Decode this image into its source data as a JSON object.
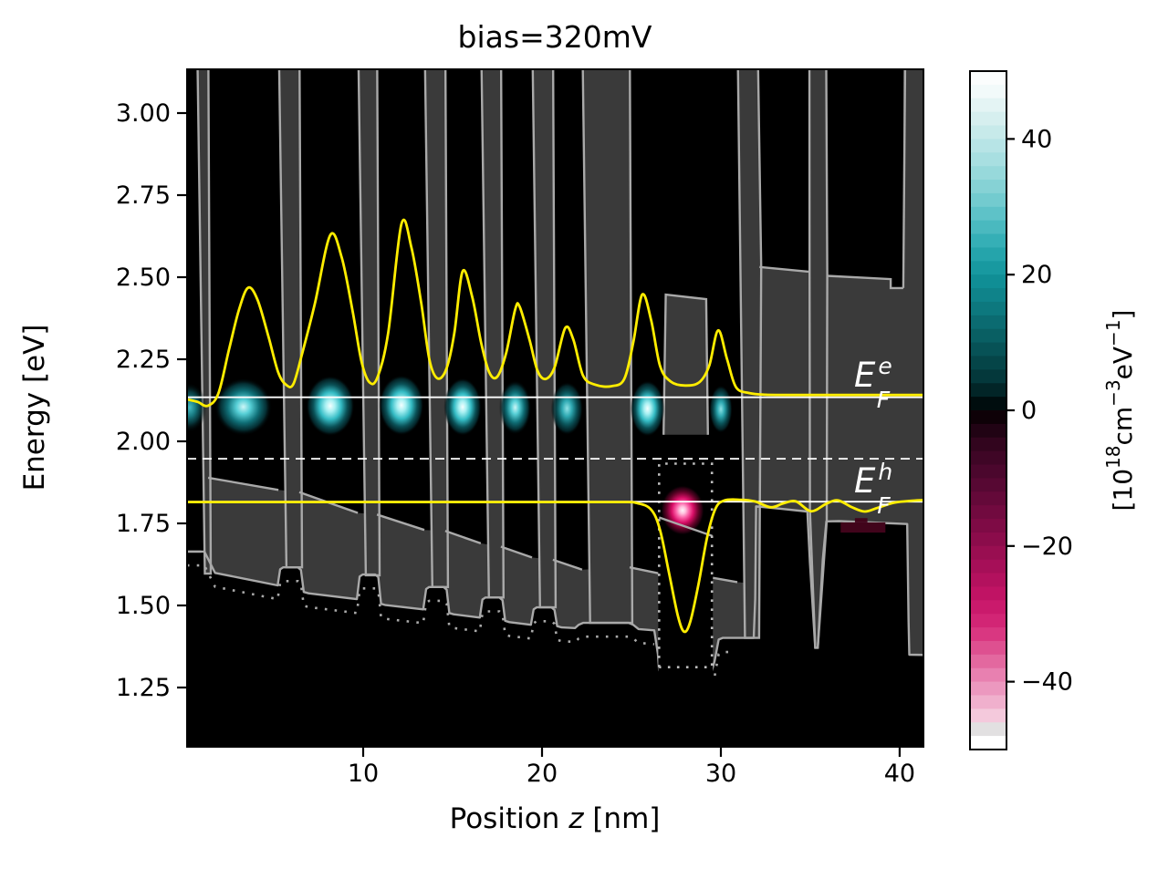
{
  "title": "bias=320mV",
  "axes": {
    "xlabel": {
      "pre": "Position ",
      "var": "z",
      "post": " [nm]"
    },
    "ylabel": "Energy [eV]",
    "xticks": [
      {
        "v": 10,
        "label": "10"
      },
      {
        "v": 20,
        "label": "20"
      },
      {
        "v": 30,
        "label": "30"
      },
      {
        "v": 40,
        "label": "40"
      }
    ],
    "yticks": [
      {
        "v": 3.0,
        "label": "3.00"
      },
      {
        "v": 2.75,
        "label": "2.75"
      },
      {
        "v": 2.5,
        "label": "2.50"
      },
      {
        "v": 2.25,
        "label": "2.25"
      },
      {
        "v": 2.0,
        "label": "2.00"
      },
      {
        "v": 1.75,
        "label": "1.75"
      },
      {
        "v": 1.5,
        "label": "1.50"
      },
      {
        "v": 1.25,
        "label": "1.25"
      }
    ],
    "xlim": [
      0.153,
      41.33
    ],
    "ylim": [
      1.0694,
      3.1333
    ]
  },
  "labels": {
    "efe": {
      "base": "E",
      "sup": "e",
      "sub": "F"
    },
    "efh": {
      "base": "E",
      "sup": "h",
      "sub": "F"
    }
  },
  "colorbar": {
    "vmin": -50,
    "vmax": 50,
    "bands": 50,
    "ticks": [
      {
        "v": 40,
        "label": "40"
      },
      {
        "v": 20,
        "label": "20"
      },
      {
        "v": 0,
        "label": "0"
      },
      {
        "v": -20,
        "label": "−20"
      },
      {
        "v": -40,
        "label": "−40"
      }
    ],
    "unit_parts": [
      {
        "t": "[10",
        "sup": false
      },
      {
        "t": "18",
        "sup": true
      },
      {
        "t": "cm",
        "sup": false
      },
      {
        "t": "−3",
        "sup": true
      },
      {
        "t": "eV",
        "sup": false
      },
      {
        "t": "−1",
        "sup": true
      },
      {
        "t": "]",
        "sup": false
      }
    ],
    "anchors": [
      [
        50,
        "#ffffff"
      ],
      [
        47,
        "#f2fafa"
      ],
      [
        44,
        "#ddf1f1"
      ],
      [
        40,
        "#bfe7e8"
      ],
      [
        36,
        "#a0dcde"
      ],
      [
        32,
        "#7dcfd2"
      ],
      [
        28,
        "#54bec4"
      ],
      [
        24,
        "#2baab1"
      ],
      [
        20,
        "#11939a"
      ],
      [
        16,
        "#0e7e84"
      ],
      [
        12,
        "#0a656a"
      ],
      [
        8,
        "#064b4f"
      ],
      [
        4,
        "#033134"
      ],
      [
        1,
        "#000d0e"
      ],
      [
        0,
        "#000000"
      ],
      [
        -1,
        "#0e0107"
      ],
      [
        -4,
        "#2b041a"
      ],
      [
        -8,
        "#45062a"
      ],
      [
        -12,
        "#5d0836"
      ],
      [
        -16,
        "#770a42"
      ],
      [
        -20,
        "#920d4e"
      ],
      [
        -24,
        "#ad105b"
      ],
      [
        -28,
        "#c61467"
      ],
      [
        -32,
        "#d62a79"
      ],
      [
        -36,
        "#e05c97"
      ],
      [
        -40,
        "#ea8cb8"
      ],
      [
        -44,
        "#f2bcd4"
      ],
      [
        -46,
        "#f6d5e3"
      ],
      [
        -46.05,
        "#e2e0e1"
      ],
      [
        -48,
        "#e2e0e1"
      ],
      [
        -48.05,
        "#ffffff"
      ],
      [
        -50,
        "#ffffff"
      ]
    ]
  },
  "colors": {
    "plot_bg": "#000000",
    "gap_fill": "#3a3a3a",
    "band_line": "#a9a9a9",
    "curve_yellow": "#ffed00",
    "fermi_white": "#ffffff",
    "red_bar": "#41041b"
  },
  "chart_data": {
    "type": "heatmap",
    "description": "Energy-resolved carrier density n(z,E) in 10^18 cm^-3 eV^-1 over a multi-quantum-well LED band diagram at bias=320mV; cyan=electrons (positive), magenta=holes (negative), with conduction/valence band edges (gray), quasi-Fermi levels (white) and carrier density curves (yellow)",
    "fermi": {
      "efe": 2.134,
      "efh": 1.816,
      "dashed": 1.947
    },
    "band_upper_envelope": [
      [
        0.15,
        1.664
      ],
      [
        1.12,
        1.664
      ],
      [
        1.12,
        1.889
      ],
      [
        5.26,
        1.852
      ],
      [
        6.43,
        1.845
      ],
      [
        9.7,
        1.782
      ],
      [
        10.77,
        1.777
      ],
      [
        13.42,
        1.73
      ],
      [
        14.59,
        1.727
      ],
      [
        16.58,
        1.689
      ],
      [
        17.7,
        1.679
      ],
      [
        19.44,
        1.646
      ],
      [
        20.61,
        1.639
      ],
      [
        22.24,
        1.609
      ],
      [
        24.9,
        1.616
      ],
      [
        26.5,
        1.598
      ],
      [
        29.55,
        1.584
      ],
      [
        30.92,
        1.571
      ],
      [
        32.04,
        1.565
      ],
      [
        32.04,
        2.531
      ],
      [
        34.9,
        2.517
      ],
      [
        35.93,
        2.504
      ],
      [
        39.5,
        2.494
      ],
      [
        39.5,
        2.467
      ],
      [
        40.2,
        2.467
      ],
      [
        40.2,
        3.3
      ],
      [
        41.5,
        3.3
      ]
    ],
    "band_upper_segments": [
      [
        [
          0.15,
          1.664
        ],
        [
          0.95,
          1.664
        ]
      ],
      [
        [
          1.33,
          1.889
        ],
        [
          5.26,
          1.852
        ]
      ],
      [
        [
          6.43,
          1.845
        ],
        [
          9.7,
          1.782
        ]
      ],
      [
        [
          10.77,
          1.777
        ],
        [
          13.42,
          1.73
        ]
      ],
      [
        [
          14.59,
          1.727
        ],
        [
          16.58,
          1.689
        ]
      ],
      [
        [
          17.7,
          1.679
        ],
        [
          19.44,
          1.646
        ]
      ],
      [
        [
          20.61,
          1.639
        ],
        [
          22.24,
          1.609
        ]
      ],
      [
        [
          24.9,
          1.616
        ],
        [
          26.5,
          1.598
        ]
      ],
      [
        [
          29.55,
          1.584
        ],
        [
          30.92,
          1.571
        ]
      ],
      [
        [
          32.16,
          2.531
        ],
        [
          34.9,
          2.517
        ]
      ],
      [
        [
          35.93,
          2.504
        ],
        [
          39.5,
          2.494
        ],
        [
          39.5,
          2.467
        ],
        [
          40.2,
          2.467
        ]
      ],
      [
        [
          40.2,
          2.467
        ],
        [
          40.33,
          3.3
        ]
      ]
    ],
    "ev_points": [
      [
        0.15,
        1.664
      ],
      [
        1.12,
        1.664
      ],
      [
        1.72,
        1.599
      ],
      [
        5.22,
        1.561
      ],
      [
        5.36,
        1.61
      ],
      [
        5.52,
        1.616
      ],
      [
        6.35,
        1.616
      ],
      [
        6.52,
        1.608
      ],
      [
        6.68,
        1.541
      ],
      [
        6.95,
        1.537
      ],
      [
        9.65,
        1.519
      ],
      [
        9.8,
        1.588
      ],
      [
        9.97,
        1.594
      ],
      [
        10.68,
        1.594
      ],
      [
        10.85,
        1.586
      ],
      [
        11.0,
        1.505
      ],
      [
        11.25,
        1.501
      ],
      [
        13.36,
        1.488
      ],
      [
        13.52,
        1.55
      ],
      [
        13.69,
        1.556
      ],
      [
        14.5,
        1.556
      ],
      [
        14.67,
        1.548
      ],
      [
        14.82,
        1.477
      ],
      [
        15.06,
        1.473
      ],
      [
        16.52,
        1.463
      ],
      [
        16.67,
        1.518
      ],
      [
        16.84,
        1.524
      ],
      [
        17.62,
        1.524
      ],
      [
        17.79,
        1.516
      ],
      [
        17.94,
        1.453
      ],
      [
        18.18,
        1.449
      ],
      [
        19.38,
        1.441
      ],
      [
        19.53,
        1.488
      ],
      [
        19.7,
        1.494
      ],
      [
        20.53,
        1.494
      ],
      [
        20.7,
        1.486
      ],
      [
        20.85,
        1.437
      ],
      [
        21.1,
        1.433
      ],
      [
        21.85,
        1.431
      ],
      [
        22.05,
        1.441
      ],
      [
        22.3,
        1.447
      ],
      [
        24.85,
        1.447
      ],
      [
        25.1,
        1.441
      ],
      [
        25.4,
        1.428
      ],
      [
        26.28,
        1.424
      ],
      [
        26.48,
        1.352
      ],
      [
        26.55,
        1.302
      ],
      [
        29.5,
        1.302
      ],
      [
        29.65,
        1.33
      ],
      [
        29.88,
        1.396
      ],
      [
        30.1,
        1.401
      ],
      [
        31.84,
        1.401
      ],
      [
        31.92,
        1.52
      ],
      [
        31.97,
        1.802
      ],
      [
        33.4,
        1.794
      ],
      [
        34.84,
        1.786
      ],
      [
        34.98,
        1.63
      ],
      [
        35.28,
        1.371
      ],
      [
        35.42,
        1.371
      ],
      [
        35.7,
        1.64
      ],
      [
        35.9,
        1.756
      ],
      [
        36.6,
        1.757
      ],
      [
        40.42,
        1.748
      ],
      [
        40.5,
        1.45
      ],
      [
        40.54,
        1.35
      ],
      [
        41.5,
        1.349
      ]
    ],
    "dotted_offset": 0.042,
    "dotted_zmax": 26.4,
    "dotted_extra": [
      [
        29.66,
        1.286
      ],
      [
        29.88,
        1.352
      ],
      [
        30.12,
        1.358
      ],
      [
        30.62,
        1.358
      ]
    ],
    "barriers": [
      {
        "z1": 0.7,
        "z2": 1.33,
        "eb": 1.597
      },
      {
        "z1": 5.26,
        "z2": 6.43,
        "eb": 1.616
      },
      {
        "z1": 9.7,
        "z2": 10.77,
        "eb": 1.592
      },
      {
        "z1": 13.42,
        "z2": 14.59,
        "eb": 1.556
      },
      {
        "z1": 16.58,
        "z2": 17.7,
        "eb": 1.524
      },
      {
        "z1": 19.44,
        "z2": 20.61,
        "eb": 1.494
      },
      {
        "z1": 22.24,
        "z2": 24.9,
        "eb": 1.447
      }
    ],
    "barrier_b8": [
      [
        30.92,
        3.3
      ],
      [
        32.04,
        3.3
      ],
      [
        32.26,
        2.53
      ],
      [
        32.18,
        1.8
      ],
      [
        32.14,
        1.401
      ],
      [
        31.35,
        1.401
      ]
    ],
    "barrier_ebl": [
      [
        34.95,
        3.3
      ],
      [
        35.88,
        3.3
      ],
      [
        35.95,
        2.51
      ],
      [
        35.92,
        1.756
      ],
      [
        35.42,
        1.371
      ],
      [
        35.28,
        1.371
      ],
      [
        34.98,
        1.79
      ],
      [
        34.96,
        2.51
      ]
    ],
    "hole_well": {
      "box": {
        "z1": 26.5,
        "z2": 29.55,
        "etop": 2.5,
        "ebot": 1.296
      },
      "cap": [
        [
          26.8,
          2.02
        ],
        [
          26.92,
          2.447
        ],
        [
          29.18,
          2.433
        ],
        [
          29.28,
          2.02
        ]
      ],
      "slant": [
        [
          26.55,
          1.768
        ],
        [
          29.52,
          1.712
        ]
      ],
      "dotted": {
        "zl": 26.55,
        "zr": 29.5,
        "etop": 1.932,
        "ebot": 1.312
      }
    },
    "electron_blobs": [
      {
        "z": 0.3,
        "e": 2.103,
        "rz": 0.95,
        "re": 0.075,
        "tier": "dim"
      },
      {
        "z": 3.3,
        "e": 2.105,
        "rz": 1.6,
        "re": 0.088,
        "tier": "bright"
      },
      {
        "z": 8.16,
        "e": 2.108,
        "rz": 1.35,
        "re": 0.092,
        "tier": "white"
      },
      {
        "z": 12.14,
        "e": 2.11,
        "rz": 1.25,
        "re": 0.092,
        "tier": "white"
      },
      {
        "z": 15.56,
        "e": 2.105,
        "rz": 1.05,
        "re": 0.088,
        "tier": "white"
      },
      {
        "z": 18.5,
        "e": 2.103,
        "rz": 0.9,
        "re": 0.083,
        "tier": "bright"
      },
      {
        "z": 21.4,
        "e": 2.1,
        "rz": 0.9,
        "re": 0.081,
        "tier": "med"
      },
      {
        "z": 25.9,
        "e": 2.1,
        "rz": 0.95,
        "re": 0.085,
        "tier": "white"
      },
      {
        "z": 30.0,
        "e": 2.098,
        "rz": 0.65,
        "re": 0.073,
        "tier": "med"
      }
    ],
    "hole_blob": {
      "z": 27.86,
      "e": 1.79,
      "rz": 1.22,
      "re": 0.076
    },
    "red_bars": [
      {
        "z1": 36.7,
        "z2": 39.2,
        "e1": 1.722,
        "e2": 1.753
      },
      {
        "z1": 37.5,
        "z2": 38.2,
        "e1": 1.753,
        "e2": 1.766
      }
    ],
    "yellow_upper": [
      [
        0.15,
        2.128
      ],
      [
        0.75,
        2.12
      ],
      [
        1.3,
        2.108
      ],
      [
        1.9,
        2.145
      ],
      [
        2.5,
        2.28
      ],
      [
        3.05,
        2.4
      ],
      [
        3.57,
        2.468
      ],
      [
        4.1,
        2.43
      ],
      [
        4.7,
        2.32
      ],
      [
        5.25,
        2.21
      ],
      [
        5.7,
        2.172
      ],
      [
        6.1,
        2.175
      ],
      [
        6.6,
        2.27
      ],
      [
        7.3,
        2.42
      ],
      [
        8.16,
        2.628
      ],
      [
        8.8,
        2.56
      ],
      [
        9.4,
        2.4
      ],
      [
        9.9,
        2.245
      ],
      [
        10.35,
        2.18
      ],
      [
        10.8,
        2.195
      ],
      [
        11.4,
        2.33
      ],
      [
        12.14,
        2.662
      ],
      [
        12.7,
        2.59
      ],
      [
        13.25,
        2.42
      ],
      [
        13.7,
        2.25
      ],
      [
        14.15,
        2.192
      ],
      [
        14.65,
        2.22
      ],
      [
        15.1,
        2.33
      ],
      [
        15.56,
        2.518
      ],
      [
        16.1,
        2.44
      ],
      [
        16.6,
        2.3
      ],
      [
        17.05,
        2.21
      ],
      [
        17.5,
        2.197
      ],
      [
        18.0,
        2.27
      ],
      [
        18.5,
        2.402
      ],
      [
        18.75,
        2.41
      ],
      [
        19.3,
        2.31
      ],
      [
        19.75,
        2.215
      ],
      [
        20.2,
        2.19
      ],
      [
        20.7,
        2.225
      ],
      [
        21.3,
        2.345
      ],
      [
        21.75,
        2.31
      ],
      [
        22.3,
        2.2
      ],
      [
        23.0,
        2.172
      ],
      [
        23.9,
        2.168
      ],
      [
        24.6,
        2.19
      ],
      [
        25.1,
        2.3
      ],
      [
        25.6,
        2.447
      ],
      [
        26.1,
        2.37
      ],
      [
        26.6,
        2.23
      ],
      [
        27.2,
        2.182
      ],
      [
        28.0,
        2.17
      ],
      [
        28.8,
        2.18
      ],
      [
        29.35,
        2.23
      ],
      [
        29.85,
        2.338
      ],
      [
        30.35,
        2.25
      ],
      [
        30.85,
        2.165
      ],
      [
        31.6,
        2.147
      ],
      [
        32.5,
        2.142
      ],
      [
        34.0,
        2.141
      ],
      [
        37.0,
        2.141
      ],
      [
        41.5,
        2.141
      ]
    ],
    "yellow_lower": [
      [
        0.15,
        1.815
      ],
      [
        5.0,
        1.815
      ],
      [
        12.0,
        1.815
      ],
      [
        20.0,
        1.815
      ],
      [
        24.3,
        1.815
      ],
      [
        25.3,
        1.812
      ],
      [
        26.1,
        1.792
      ],
      [
        26.6,
        1.73
      ],
      [
        27.1,
        1.6
      ],
      [
        27.6,
        1.468
      ],
      [
        27.95,
        1.42
      ],
      [
        28.3,
        1.452
      ],
      [
        28.75,
        1.565
      ],
      [
        29.25,
        1.712
      ],
      [
        29.7,
        1.795
      ],
      [
        30.2,
        1.82
      ],
      [
        31.1,
        1.822
      ],
      [
        31.9,
        1.817
      ],
      [
        32.8,
        1.799
      ],
      [
        33.5,
        1.811
      ],
      [
        34.2,
        1.817
      ],
      [
        35.05,
        1.787
      ],
      [
        35.9,
        1.81
      ],
      [
        36.55,
        1.82
      ],
      [
        37.3,
        1.8
      ],
      [
        38.05,
        1.786
      ],
      [
        38.8,
        1.798
      ],
      [
        39.7,
        1.813
      ],
      [
        40.7,
        1.819
      ],
      [
        41.5,
        1.821
      ]
    ]
  }
}
